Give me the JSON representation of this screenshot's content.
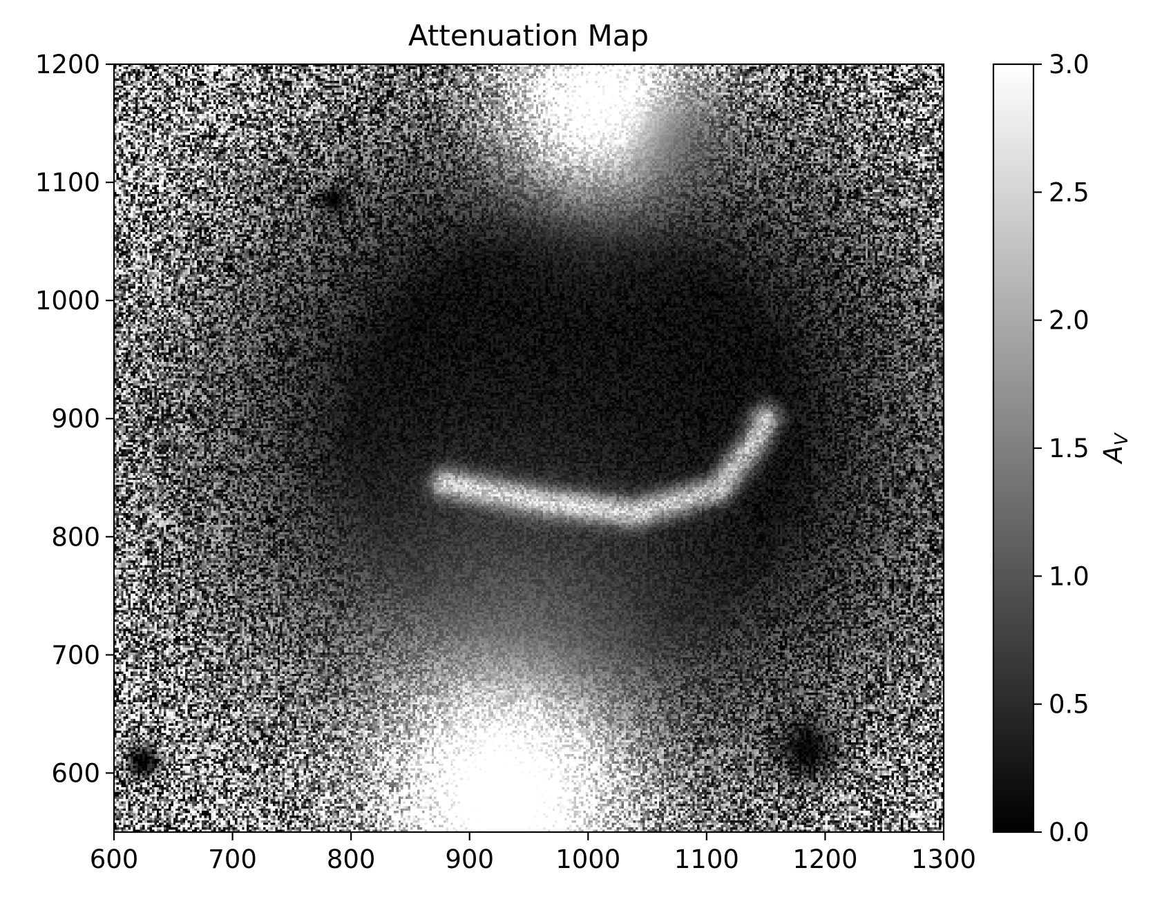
{
  "chart_data": {
    "type": "heatmap",
    "title": "Attenuation Map",
    "xlabel": "",
    "ylabel": "",
    "xlim": [
      600,
      1300
    ],
    "ylim": [
      550,
      1200
    ],
    "xticks": [
      600,
      700,
      800,
      900,
      1000,
      1100,
      1200,
      1300
    ],
    "yticks": [
      600,
      700,
      800,
      900,
      1000,
      1100,
      1200
    ],
    "colormap": "gray",
    "colorbar": {
      "label": "A_V",
      "label_main": "A",
      "label_sub": "V",
      "range": [
        0.0,
        3.0
      ],
      "ticks": [
        "0.0",
        "0.5",
        "1.0",
        "1.5",
        "2.0",
        "2.5",
        "3.0"
      ]
    },
    "features": [
      {
        "kind": "bright",
        "x": 930,
        "y": 565,
        "value": 3.0,
        "sigma": 70
      },
      {
        "kind": "bright",
        "x": 1010,
        "y": 1170,
        "value": 3.0,
        "sigma": 60
      },
      {
        "kind": "dust_lane",
        "points": [
          [
            880,
            845
          ],
          [
            960,
            830
          ],
          [
            1040,
            820
          ],
          [
            1110,
            840
          ],
          [
            1140,
            880
          ],
          [
            1150,
            900
          ]
        ],
        "value": 2.5
      },
      {
        "kind": "dark",
        "x": 1065,
        "y": 1140,
        "value": 0.0,
        "sigma": 35
      },
      {
        "kind": "dark_core",
        "x": 1000,
        "y": 900,
        "value": 0.1,
        "sigma": 150
      },
      {
        "kind": "dark_blob",
        "x": 625,
        "y": 610,
        "value": 0.0,
        "sigma": 12
      },
      {
        "kind": "dark_blob",
        "x": 785,
        "y": 1085,
        "value": 0.0,
        "sigma": 8
      },
      {
        "kind": "dark_blob",
        "x": 1185,
        "y": 620,
        "value": 0.2,
        "sigma": 18
      }
    ]
  }
}
